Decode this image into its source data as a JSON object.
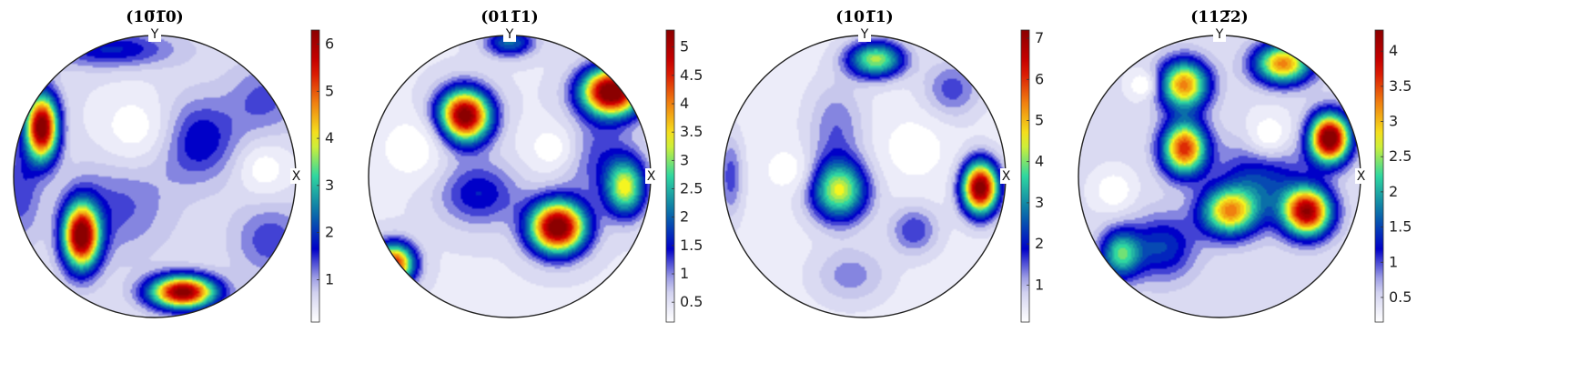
{
  "figure": {
    "type": "pole-figure-panels",
    "count": 4
  },
  "colormap": {
    "name": "white-blue-cyan-yellow-red",
    "stops": [
      "#ffffff",
      "#c7c7ec",
      "#0000c8",
      "#0a6fa8",
      "#2fd7a0",
      "#f5f520",
      "#f08010",
      "#d40000",
      "#8b0000"
    ]
  },
  "chart_data": [
    {
      "type": "heatmap",
      "title": "(10̅1̅0)",
      "title_display": "(1010)",
      "axis_labels": {
        "top": "Y",
        "right": "X"
      },
      "colorbar": {
        "ticks": [
          "1",
          "2",
          "3",
          "4",
          "5",
          "6"
        ],
        "tick_values": [
          1,
          2,
          3,
          4,
          5,
          6
        ],
        "range": [
          0.1,
          6.3
        ]
      },
      "peaks": [
        {
          "u": -0.8,
          "v": 0.35,
          "value": 6.1,
          "sx": 0.08,
          "sy": 0.16
        },
        {
          "u": -0.52,
          "v": -0.42,
          "value": 6.0,
          "sx": 0.09,
          "sy": 0.16
        },
        {
          "u": 0.2,
          "v": -0.82,
          "value": 5.9,
          "sx": 0.16,
          "sy": 0.08
        },
        {
          "u": 0.3,
          "v": 0.26,
          "value": 1.3,
          "sx": 0.2,
          "sy": 0.2
        },
        {
          "u": -0.3,
          "v": 0.9,
          "value": 1.3,
          "sx": 0.3,
          "sy": 0.09
        },
        {
          "u": -0.25,
          "v": -0.2,
          "value": 0.8,
          "sx": 0.25,
          "sy": 0.25
        },
        {
          "u": 0.78,
          "v": 0.55,
          "value": 0.8,
          "sx": 0.18,
          "sy": 0.18
        },
        {
          "u": 0.82,
          "v": -0.45,
          "value": 0.9,
          "sx": 0.18,
          "sy": 0.18
        },
        {
          "u": -0.95,
          "v": -0.1,
          "value": 0.9,
          "sx": 0.1,
          "sy": 0.25
        }
      ],
      "background": 0.55,
      "holes": [
        {
          "u": -0.15,
          "v": 0.35,
          "r": 0.28
        },
        {
          "u": 0.78,
          "v": 0.05,
          "r": 0.18
        }
      ]
    },
    {
      "type": "heatmap",
      "title": "(011̅1)",
      "title_display": "(0111)",
      "axis_labels": {
        "top": "Y",
        "right": "X"
      },
      "colorbar": {
        "ticks": [
          "0.5",
          "1",
          "1.5",
          "2",
          "2.5",
          "3",
          "3.5",
          "4",
          "4.5",
          "5"
        ],
        "tick_values": [
          0.5,
          1,
          1.5,
          2,
          2.5,
          3,
          3.5,
          4,
          4.5,
          5
        ],
        "range": [
          0.15,
          5.3
        ]
      },
      "peaks": [
        {
          "u": -0.32,
          "v": 0.43,
          "value": 5.1,
          "sx": 0.13,
          "sy": 0.13
        },
        {
          "u": 0.34,
          "v": -0.36,
          "value": 5.2,
          "sx": 0.14,
          "sy": 0.13
        },
        {
          "u": 0.72,
          "v": 0.6,
          "value": 5.3,
          "sx": 0.15,
          "sy": 0.12
        },
        {
          "u": 0.82,
          "v": -0.08,
          "value": 2.8,
          "sx": 0.1,
          "sy": 0.14
        },
        {
          "u": -0.22,
          "v": -0.12,
          "value": 1.1,
          "sx": 0.2,
          "sy": 0.16
        },
        {
          "u": 0.0,
          "v": 0.95,
          "value": 1.6,
          "sx": 0.12,
          "sy": 0.07
        },
        {
          "u": -0.82,
          "v": -0.62,
          "value": 4.2,
          "sx": 0.1,
          "sy": 0.1
        },
        {
          "u": 0.55,
          "v": 0.15,
          "value": 0.9,
          "sx": 0.22,
          "sy": 0.2
        }
      ],
      "background": 0.45,
      "holes": [
        {
          "u": 0.3,
          "v": 0.2,
          "r": 0.22
        },
        {
          "u": -0.7,
          "v": 0.2,
          "r": 0.22
        }
      ]
    },
    {
      "type": "heatmap",
      "title": "(101̅1)",
      "title_display": "(1011)",
      "axis_labels": {
        "top": "Y",
        "right": "X"
      },
      "colorbar": {
        "ticks": [
          "1",
          "2",
          "3",
          "4",
          "5",
          "6",
          "7"
        ],
        "tick_values": [
          1,
          2,
          3,
          4,
          5,
          6,
          7
        ],
        "range": [
          0.1,
          7.2
        ]
      },
      "peaks": [
        {
          "u": 0.82,
          "v": -0.08,
          "value": 7.1,
          "sx": 0.09,
          "sy": 0.13
        },
        {
          "u": -0.18,
          "v": -0.1,
          "value": 4.0,
          "sx": 0.14,
          "sy": 0.15
        },
        {
          "u": 0.08,
          "v": 0.83,
          "value": 3.8,
          "sx": 0.14,
          "sy": 0.09
        },
        {
          "u": 0.35,
          "v": -0.38,
          "value": 1.3,
          "sx": 0.12,
          "sy": 0.12
        },
        {
          "u": 0.62,
          "v": 0.62,
          "value": 1.2,
          "sx": 0.14,
          "sy": 0.14
        },
        {
          "u": -0.2,
          "v": 0.35,
          "value": 1.0,
          "sx": 0.14,
          "sy": 0.22
        },
        {
          "u": -0.95,
          "v": 0.0,
          "value": 1.2,
          "sx": 0.06,
          "sy": 0.2
        },
        {
          "u": -0.1,
          "v": -0.7,
          "value": 0.9,
          "sx": 0.18,
          "sy": 0.14
        }
      ],
      "background": 0.4,
      "holes": [
        {
          "u": 0.35,
          "v": 0.2,
          "r": 0.22
        },
        {
          "u": -0.55,
          "v": 0.05,
          "r": 0.15
        }
      ]
    },
    {
      "type": "heatmap",
      "title": "(112̅2)",
      "title_display": "(1122)",
      "axis_labels": {
        "top": "Y",
        "right": "X"
      },
      "colorbar": {
        "ticks": [
          "0.5",
          "1",
          "1.5",
          "2",
          "2.5",
          "3",
          "3.5",
          "4"
        ],
        "tick_values": [
          0.5,
          1,
          1.5,
          2,
          2.5,
          3,
          3.5,
          4
        ],
        "range": [
          0.15,
          4.3
        ]
      },
      "peaks": [
        {
          "u": -0.25,
          "v": 0.65,
          "value": 2.8,
          "sx": 0.12,
          "sy": 0.12
        },
        {
          "u": 0.45,
          "v": 0.8,
          "value": 2.8,
          "sx": 0.14,
          "sy": 0.1
        },
        {
          "u": -0.25,
          "v": 0.2,
          "value": 3.2,
          "sx": 0.11,
          "sy": 0.13
        },
        {
          "u": 0.78,
          "v": 0.27,
          "value": 4.2,
          "sx": 0.1,
          "sy": 0.12
        },
        {
          "u": 0.62,
          "v": -0.25,
          "value": 3.7,
          "sx": 0.12,
          "sy": 0.12
        },
        {
          "u": 0.07,
          "v": -0.25,
          "value": 2.6,
          "sx": 0.14,
          "sy": 0.12
        },
        {
          "u": 0.3,
          "v": 0.0,
          "value": 1.0,
          "sx": 0.2,
          "sy": 0.2
        },
        {
          "u": -0.4,
          "v": -0.5,
          "value": 1.0,
          "sx": 0.16,
          "sy": 0.16
        },
        {
          "u": -0.7,
          "v": -0.55,
          "value": 1.8,
          "sx": 0.1,
          "sy": 0.12
        }
      ],
      "background": 0.45,
      "holes": [
        {
          "u": 0.35,
          "v": 0.3,
          "r": 0.18
        },
        {
          "u": -0.75,
          "v": -0.1,
          "r": 0.14
        },
        {
          "u": -0.55,
          "v": 0.65,
          "r": 0.1
        }
      ]
    }
  ]
}
